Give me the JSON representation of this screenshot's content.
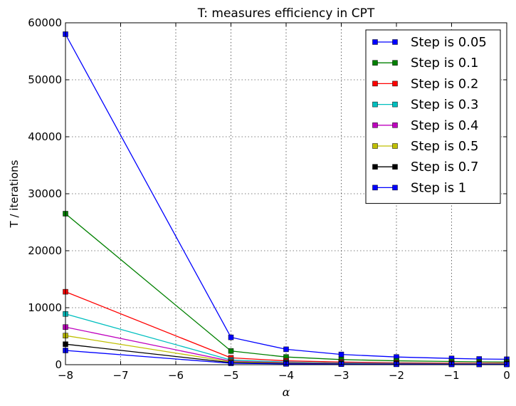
{
  "chart_data": {
    "type": "line",
    "title": "T: measures efficiency in CPT",
    "xlabel": "α",
    "ylabel": "T / iterations",
    "xlim": [
      -8,
      0
    ],
    "ylim": [
      0,
      60000
    ],
    "grid": true,
    "legend_position": "top-right",
    "x": [
      -8,
      -5,
      -4,
      -3,
      -2,
      -1,
      -0.5,
      0
    ],
    "xticks": [
      -8,
      -7,
      -6,
      -5,
      -4,
      -3,
      -2,
      -1,
      0
    ],
    "xtick_labels": [
      "−8",
      "−7",
      "−6",
      "−5",
      "−4",
      "−3",
      "−2",
      "−1",
      "0"
    ],
    "yticks": [
      0,
      10000,
      20000,
      30000,
      40000,
      50000,
      60000
    ],
    "ytick_labels": [
      "0",
      "10000",
      "20000",
      "30000",
      "40000",
      "50000",
      "60000"
    ],
    "series": [
      {
        "name": "Step is 0.05",
        "color": "#0000ff",
        "values": [
          58000,
          4800,
          2700,
          1800,
          1350,
          1100,
          1000,
          950
        ]
      },
      {
        "name": "Step is 0.1",
        "color": "#008000",
        "values": [
          26500,
          2400,
          1350,
          900,
          680,
          560,
          500,
          470
        ]
      },
      {
        "name": "Step is 0.2",
        "color": "#ff0000",
        "values": [
          12800,
          1200,
          680,
          460,
          340,
          280,
          250,
          240
        ]
      },
      {
        "name": "Step is 0.3",
        "color": "#00bfbf",
        "values": [
          8900,
          820,
          460,
          310,
          230,
          190,
          170,
          160
        ]
      },
      {
        "name": "Step is 0.4",
        "color": "#bf00bf",
        "values": [
          6600,
          620,
          350,
          230,
          170,
          140,
          130,
          120
        ]
      },
      {
        "name": "Step is 0.5",
        "color": "#bfbf00",
        "values": [
          5100,
          500,
          280,
          190,
          140,
          115,
          105,
          100
        ]
      },
      {
        "name": "Step is 0.7",
        "color": "#000000",
        "values": [
          3600,
          360,
          200,
          135,
          100,
          82,
          75,
          70
        ]
      },
      {
        "name": "Step is 1",
        "color": "#0000ff",
        "values": [
          2500,
          250,
          140,
          95,
          70,
          57,
          52,
          50
        ]
      }
    ]
  }
}
